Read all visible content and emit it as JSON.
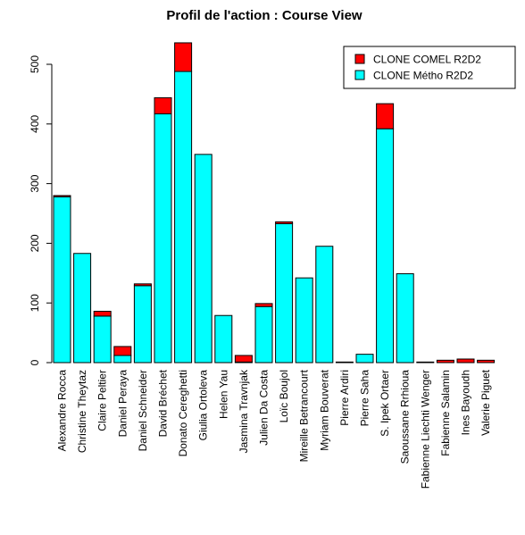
{
  "chart_data": {
    "type": "bar",
    "stacked": true,
    "title": "Profil de l'action : Course View",
    "xlabel": "",
    "ylabel": "",
    "ylim": [
      0,
      550
    ],
    "yticks": [
      0,
      100,
      200,
      300,
      400,
      500
    ],
    "grid": false,
    "legend_position": "top-right",
    "categories": [
      "Alexandre Rocca",
      "Christine Theytaz",
      "Claire Peltier",
      "Daniel Peraya",
      "Daniel Schneider",
      "David Bréchet",
      "Donato Cereghetti",
      "Giulia Ortoleva",
      "Helen Yau",
      "Jasmina Travnjak",
      "Julien Da Costa",
      "Loïc Boujol",
      "Mireille Betrancourt",
      "Myriam Bouverat",
      "Pierre Ardiri",
      "Pierre Saha",
      "S. Ipek Ortaer",
      "Saoussane Rrhioua",
      "Fabienne Liechti Wenger",
      "Fabienne Salamin",
      "Ines Bayoudh",
      "Valerie Piguet"
    ],
    "series": [
      {
        "name": "CLONE Métho R2D2",
        "color": "#00FFFF",
        "values": [
          278,
          183,
          78,
          12,
          129,
          417,
          488,
          349,
          79,
          1,
          94,
          233,
          142,
          195,
          0,
          14,
          392,
          149,
          0,
          0,
          0,
          0
        ]
      },
      {
        "name": "CLONE COMEL R2D2",
        "color": "#FF0000",
        "values": [
          2,
          0,
          8,
          15,
          3,
          27,
          48,
          0,
          0,
          11,
          5,
          3,
          0,
          0,
          1,
          0,
          42,
          0,
          1,
          4,
          6,
          4
        ]
      }
    ],
    "legend": [
      {
        "label": "CLONE COMEL R2D2",
        "color": "#FF0000"
      },
      {
        "label": "CLONE Métho R2D2",
        "color": "#00FFFF"
      }
    ]
  }
}
